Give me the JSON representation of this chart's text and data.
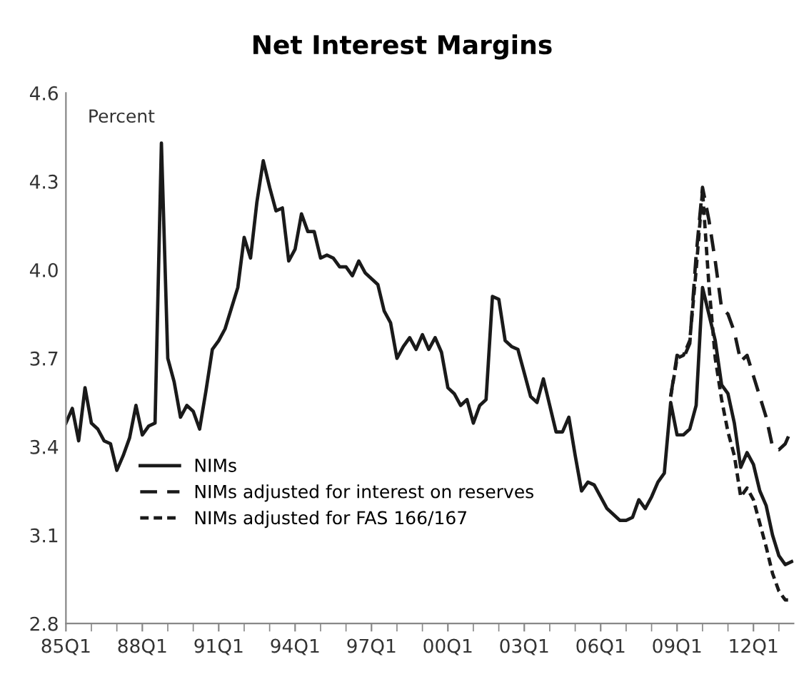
{
  "chart_data": {
    "type": "line",
    "title": "Net Interest Margins",
    "annotations": [
      "Percent"
    ],
    "ylim": [
      2.8,
      4.6
    ],
    "yticks": [
      2.8,
      3.1,
      3.4,
      3.7,
      {
        "value": 4,
        "label": "4.0"
      },
      4.3,
      4.6
    ],
    "categories": [
      "85Q1",
      null,
      null,
      null,
      null,
      null,
      null,
      null,
      null,
      null,
      null,
      null,
      "88Q1",
      null,
      null,
      null,
      null,
      null,
      null,
      null,
      null,
      null,
      null,
      null,
      "91Q1",
      null,
      null,
      null,
      null,
      null,
      null,
      null,
      null,
      null,
      null,
      null,
      "94Q1",
      null,
      null,
      null,
      null,
      null,
      null,
      null,
      null,
      null,
      null,
      null,
      "97Q1",
      null,
      null,
      null,
      null,
      null,
      null,
      null,
      null,
      null,
      null,
      null,
      "00Q1",
      null,
      null,
      null,
      null,
      null,
      null,
      null,
      null,
      null,
      null,
      null,
      "03Q1",
      null,
      null,
      null,
      null,
      null,
      null,
      null,
      null,
      null,
      null,
      null,
      "06Q1",
      null,
      null,
      null,
      null,
      null,
      null,
      null,
      null,
      null,
      null,
      null,
      "09Q1",
      null,
      null,
      null,
      null,
      null,
      null,
      null,
      null,
      null,
      null,
      null,
      "12Q1",
      null,
      null,
      null,
      null,
      null,
      null
    ],
    "grid": false,
    "legend": "left",
    "marker": "none",
    "series": [
      {
        "name": "NIMs",
        "color": "#1a1a1a",
        "line_style": "solid",
        "values": [
          3.48,
          3.53,
          3.42,
          3.6,
          3.48,
          3.46,
          3.42,
          3.41,
          3.32,
          3.37,
          3.43,
          3.54,
          3.44,
          3.47,
          3.48,
          4.43,
          3.7,
          3.62,
          3.5,
          3.54,
          3.52,
          3.46,
          3.59,
          3.73,
          3.76,
          3.8,
          3.87,
          3.94,
          4.11,
          4.04,
          4.23,
          4.37,
          4.28,
          4.2,
          4.21,
          4.03,
          4.07,
          4.19,
          4.13,
          4.13,
          4.04,
          4.05,
          4.04,
          4.01,
          4.01,
          3.98,
          4.03,
          3.99,
          3.97,
          3.95,
          3.86,
          3.82,
          3.7,
          3.74,
          3.77,
          3.73,
          3.78,
          3.73,
          3.77,
          3.72,
          3.6,
          3.58,
          3.54,
          3.56,
          3.48,
          3.54,
          3.56,
          3.91,
          3.9,
          3.76,
          3.74,
          3.73,
          3.65,
          3.57,
          3.55,
          3.63,
          3.54,
          3.45,
          3.45,
          3.5,
          3.37,
          3.25,
          3.28,
          3.27,
          3.23,
          3.19,
          3.17,
          3.15,
          3.15,
          3.16,
          3.22,
          3.19,
          3.23,
          3.28,
          3.31,
          3.55,
          3.44,
          3.44,
          3.46,
          3.54,
          3.94,
          3.85,
          3.76,
          3.61,
          3.58,
          3.48,
          3.33,
          3.38,
          3.34,
          3.25,
          3.2,
          3.1,
          3.03,
          3.0,
          3.01
        ]
      },
      {
        "name": "NIMs adjusted for interest on reserves",
        "color": "#1a1a1a",
        "line_style": "dashed",
        "values": [
          null,
          null,
          null,
          null,
          null,
          null,
          null,
          null,
          null,
          null,
          null,
          null,
          null,
          null,
          null,
          null,
          null,
          null,
          null,
          null,
          null,
          null,
          null,
          null,
          null,
          null,
          null,
          null,
          null,
          null,
          null,
          null,
          null,
          null,
          null,
          null,
          null,
          null,
          null,
          null,
          null,
          null,
          null,
          null,
          null,
          null,
          null,
          null,
          null,
          null,
          null,
          null,
          null,
          null,
          null,
          null,
          null,
          null,
          null,
          null,
          null,
          null,
          null,
          null,
          null,
          null,
          null,
          null,
          null,
          null,
          null,
          null,
          null,
          null,
          null,
          null,
          null,
          null,
          null,
          null,
          null,
          null,
          null,
          null,
          null,
          null,
          null,
          null,
          null,
          null,
          null,
          null,
          null,
          null,
          null,
          3.57,
          3.71,
          3.7,
          3.75,
          4.05,
          4.28,
          4.17,
          4.03,
          3.87,
          3.85,
          3.79,
          3.69,
          3.71,
          3.64,
          3.57,
          3.5,
          3.4,
          3.39,
          3.41,
          3.46
        ]
      },
      {
        "name": "NIMs adjusted for FAS 166/167",
        "color": "#1a1a1a",
        "line_style": "dotted",
        "values": [
          null,
          null,
          null,
          null,
          null,
          null,
          null,
          null,
          null,
          null,
          null,
          null,
          null,
          null,
          null,
          null,
          null,
          null,
          null,
          null,
          null,
          null,
          null,
          null,
          null,
          null,
          null,
          null,
          null,
          null,
          null,
          null,
          null,
          null,
          null,
          null,
          null,
          null,
          null,
          null,
          null,
          null,
          null,
          null,
          null,
          null,
          null,
          null,
          null,
          null,
          null,
          null,
          null,
          null,
          null,
          null,
          null,
          null,
          null,
          null,
          null,
          null,
          null,
          null,
          null,
          null,
          null,
          null,
          null,
          null,
          null,
          null,
          null,
          null,
          null,
          null,
          null,
          null,
          null,
          null,
          null,
          null,
          null,
          null,
          null,
          null,
          null,
          null,
          null,
          null,
          null,
          null,
          null,
          null,
          null,
          3.57,
          3.7,
          3.71,
          3.76,
          4.0,
          4.27,
          3.95,
          3.7,
          3.56,
          3.45,
          3.37,
          3.23,
          3.26,
          3.22,
          3.14,
          3.06,
          2.97,
          2.91,
          2.88,
          2.88
        ]
      }
    ]
  }
}
